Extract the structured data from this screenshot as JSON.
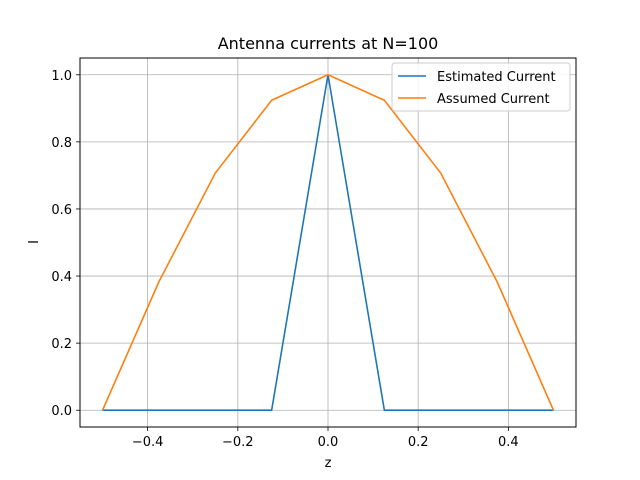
{
  "chart_data": {
    "type": "line",
    "title": "Antenna currents at N=100",
    "xlabel": "z",
    "ylabel": "I",
    "xlim": [
      -0.55,
      0.55
    ],
    "ylim": [
      -0.05,
      1.05
    ],
    "xticks": [
      -0.4,
      -0.2,
      0.0,
      0.2,
      0.4
    ],
    "xtick_labels": [
      "−0.4",
      "−0.2",
      "0.0",
      "0.2",
      "0.4"
    ],
    "yticks": [
      0.0,
      0.2,
      0.4,
      0.6,
      0.8,
      1.0
    ],
    "ytick_labels": [
      "0.0",
      "0.2",
      "0.4",
      "0.6",
      "0.8",
      "1.0"
    ],
    "grid": true,
    "legend_position": "top-right",
    "series": [
      {
        "name": "Estimated Current",
        "color": "#1f77b4",
        "x": [
          -0.5,
          -0.375,
          -0.25,
          -0.125,
          0.0,
          0.125,
          0.25,
          0.375,
          0.5
        ],
        "y": [
          0.0,
          0.0,
          0.0,
          0.0,
          1.0,
          0.0,
          0.0,
          0.0,
          0.0
        ]
      },
      {
        "name": "Assumed Current",
        "color": "#ff7f0e",
        "x": [
          -0.5,
          -0.375,
          -0.25,
          -0.125,
          0.0,
          0.125,
          0.25,
          0.375,
          0.5
        ],
        "y": [
          0.0,
          0.383,
          0.707,
          0.924,
          1.0,
          0.924,
          0.707,
          0.383,
          0.0
        ]
      }
    ]
  }
}
